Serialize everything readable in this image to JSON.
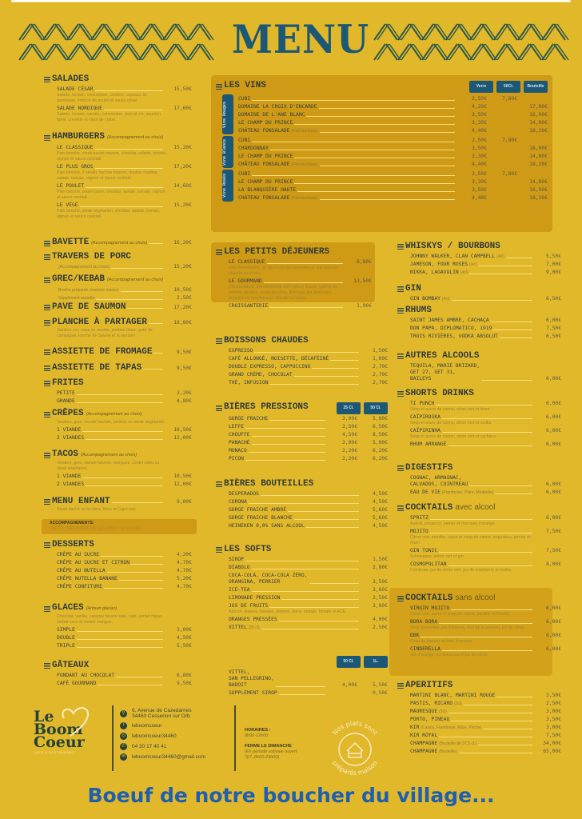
{
  "title": "MENU",
  "colors": {
    "background": "#e2b82b",
    "box": "#cf9a15",
    "title_blue": "#1d5776",
    "footer_text_blue": "#1e5fb0"
  },
  "left": [
    {
      "title": "SALADES",
      "items": [
        {
          "name": "SALADE CÉSAR",
          "prices": [
            "15,50€"
          ],
          "desc": "Salade, tomate, concombre, croûton, copeaux de parmesan, émincé de poulet et sauce césar."
        },
        {
          "name": "SALADE NORDIQUE",
          "prices": [
            "17,60€"
          ],
          "desc": "Salade, tomate, carotte, concombre, avocat, riz, saumon fumé, crevette et chair de crabe."
        }
      ]
    },
    {
      "title": "HAMBURGERS",
      "note": "(Accompagnement au choix)",
      "items": [
        {
          "name": "LE CLASSIQUE",
          "prices": [
            "15,20€"
          ],
          "desc": "Pain brioché, steak haché maison, cheddar, salade, tomate, oignon et sauce cocktail."
        },
        {
          "name": "LE PLUS GROS",
          "prices": [
            "17,20€"
          ],
          "desc": "Pain brioché, 2 steaks hachés maison, double cheddar, salade, tomate, oignon et sauce cocktail."
        },
        {
          "name": "LE POULET",
          "prices": [
            "14,60€"
          ],
          "desc": "Pain brioché, poulet pané, cheddar, salade, tomate, oignon et sauce cocktail."
        },
        {
          "name": "LE VÉGÉ",
          "prices": [
            "15,20€"
          ],
          "desc": "Pain brioché, steak végétarien, cheddar, salade, tomate, oignon et sauce cocktail."
        }
      ]
    },
    {
      "title": "BAVETTE",
      "note": "(Accompagnement au choix)",
      "price": "16,20€",
      "items": []
    },
    {
      "title": "TRAVERS DE PORC",
      "items": [
        {
          "name": "",
          "note": "(Accompagnement au choix)",
          "prices": [
            "15,20€"
          ]
        }
      ]
    },
    {
      "title": "GREC/KEBAB",
      "note": "(Accompagnement au choix)",
      "items": [
        {
          "name": "",
          "note": "Broche préparée, marinée maison",
          "prices": [
            "10,50€"
          ]
        },
        {
          "name": "",
          "note": "Supplément assiette",
          "prices": [
            "2,50€"
          ]
        }
      ]
    },
    {
      "title": "PAVE DE SAUMON",
      "price": "17,20€",
      "items": []
    },
    {
      "title": "PLANCHE À PARTAGER",
      "price": "18,80€",
      "items": [],
      "desc": "Jambon cru, copa ou rosette, jambon blanc, paté de campagne, tomme de Savoie et st nectaire."
    },
    {
      "title": "ASSIETTE DE FROMAGE",
      "price": "9,50€",
      "items": []
    },
    {
      "title": "ASSIETTE DE TAPAS",
      "price": "9,50€",
      "items": []
    },
    {
      "title": "FRITES",
      "items": [
        {
          "name": "PETITE",
          "prices": [
            "3,20€"
          ]
        },
        {
          "name": "GRANDE",
          "prices": [
            "4,80€"
          ]
        }
      ]
    },
    {
      "title": "CRÊPES",
      "note": "(Accompagnement au choix)",
      "desc": "Tenders, grec, viande hachée, jambon ou steak végétarien",
      "items": [
        {
          "name": "1 VIANDE",
          "prices": [
            "10,50€"
          ]
        },
        {
          "name": "2 VIANDES",
          "prices": [
            "12,00€"
          ]
        }
      ]
    },
    {
      "title": "TACOS",
      "note": "(Accompagnement au choix)",
      "desc": "Tenders, grec, viande hachée, merguez, cordon bleu ou steak végétarien.",
      "items": [
        {
          "name": "1 VIANDE",
          "prices": [
            "10,50€"
          ]
        },
        {
          "name": "2 VIANDES",
          "prices": [
            "12,00€"
          ]
        }
      ]
    },
    {
      "title": "MENU ENFANT",
      "price": "9,00€",
      "items": [],
      "desc": "Steak haché ou tenders, frites et Capri-sun"
    },
    {
      "title": "DESSERTS",
      "items": [
        {
          "name": "CRÊPE AU SUCRE",
          "prices": [
            "4,20€"
          ]
        },
        {
          "name": "CRÊPE AU SUCRE ET CITRON",
          "prices": [
            "4,70€"
          ]
        },
        {
          "name": "CRÊPE AU NUTELLA",
          "prices": [
            "4,70€"
          ]
        },
        {
          "name": "CRÊPE NUTELLA BANANE",
          "prices": [
            "5,20€"
          ]
        },
        {
          "name": "CRÊPE CONFITURE",
          "prices": [
            "4,70€"
          ]
        }
      ]
    },
    {
      "title": "GLACES",
      "note": "(Artisan glacier)",
      "desc": "Chocolat, vanille, caramel beurre salé, café, sorbet fraise, sorbet coco et sorbet mangue.",
      "items": [
        {
          "name": "SIMPLE",
          "prices": [
            "3,00€"
          ]
        },
        {
          "name": "DOUBLE",
          "prices": [
            "4,50€"
          ]
        },
        {
          "name": "TRIPLE",
          "prices": [
            "5,50€"
          ]
        }
      ]
    },
    {
      "title": "GÂTEAUX",
      "items": [
        {
          "name": "FONDANT AU CHOCOLAT",
          "prices": [
            "6,80€"
          ]
        },
        {
          "name": "CAFÉ GOURMAND",
          "prices": [
            "9,50€"
          ]
        }
      ]
    }
  ],
  "accompagnements": {
    "label": "ACCOMPAGNEMENTS:",
    "text": "FRITES, JARDINIÈRE DE LÉGUMES OU SALADE"
  },
  "wines": {
    "title": "LES VINS",
    "price_headers": [
      "Verre",
      "50Cl.",
      "Bouteille"
    ],
    "groups": [
      {
        "label": "Vins Rouges",
        "items": [
          {
            "name": "CUBI",
            "prices": [
              "2,50€",
              "7,80€",
              ""
            ]
          },
          {
            "name": "DOMAINE LA CROIX D'ENCARDE",
            "prices": [
              "4,20€",
              "",
              "17,80€"
            ]
          },
          {
            "name": "DOMAINE DE L'ANE BLANC",
            "prices": [
              "3,50€",
              "",
              "16,00€"
            ]
          },
          {
            "name": "LE CHAMP DU PRINCE",
            "prices": [
              "3,30€",
              "",
              "14,80€"
            ]
          },
          {
            "name": "CHÂTEAU FONSALADE",
            "note": "(Petit bonheur)",
            "prices": [
              "4,40€",
              "",
              "18,20€"
            ]
          }
        ]
      },
      {
        "label": "Vins Blancs",
        "items": [
          {
            "name": "CUBI",
            "prices": [
              "2,50€",
              "7,80€",
              ""
            ]
          },
          {
            "name": "CHARDONNAY",
            "prices": [
              "3,50€",
              "",
              "16,00€"
            ]
          },
          {
            "name": "LE CHAMP DU PRINCE",
            "prices": [
              "3,30€",
              "",
              "14,80€"
            ]
          },
          {
            "name": "CHÂTEAU FONSALADE",
            "note": "(Petit bonheur)",
            "prices": [
              "4,40€",
              "",
              "18,20€"
            ]
          }
        ]
      },
      {
        "label": "Vins Rosés",
        "items": [
          {
            "name": "CUBI",
            "prices": [
              "2,50€",
              "7,80€",
              ""
            ]
          },
          {
            "name": "LE CHAMP DU PRINCE",
            "prices": [
              "3,30€",
              "",
              "14,80€"
            ]
          },
          {
            "name": "LA BLANQUIÈRE HAUTE",
            "prices": [
              "3,50€",
              "",
              "16,00€"
            ]
          },
          {
            "name": "CHÂTEAU FONSALADE",
            "note": "(Petit bonheur)",
            "prices": [
              "4,40€",
              "",
              "18,20€"
            ]
          }
        ]
      }
    ]
  },
  "middle": [
    {
      "title": "LES PETITS DÉJEUNERS",
      "items": [
        {
          "name": "LE CLASSIQUE",
          "prices": [
            "6,80€"
          ],
          "desc": "Une viennoiserie, un jus d'oranges pressées et une boisson chaude au choix."
        },
        {
          "name": "LE GOURMAND",
          "prices": [
            "13,50€"
          ],
          "desc": "(SEULEMENT EN PÉRIODE ESTIVALE) Bacon, galette de pomme de terre, oeufs brouillés, fromage, jus d'oranges pressées et une boisson chaude au choix."
        },
        {
          "name": "CROISSANTERIE",
          "prices": [
            "1,90€"
          ]
        }
      ]
    },
    {
      "title": "BOISSONS CHAUDES",
      "items": [
        {
          "name": "EXPRESSO",
          "prices": [
            "1,50€"
          ]
        },
        {
          "name": "CAFÉ ALLONGÉ, NOISETTE, DÉCAFÉINÉ",
          "prices": [
            "1,60€"
          ]
        },
        {
          "name": "DOUBLE EXPRESSO, CAPPUCCINO",
          "prices": [
            "2,70€"
          ]
        },
        {
          "name": "GRAND CRÈME, CHOCOLAT",
          "prices": [
            "2,70€"
          ]
        },
        {
          "name": "THÉ, INFUSION",
          "prices": [
            "2,70€"
          ]
        }
      ]
    },
    {
      "title": "BIÈRES PRESSIONS",
      "badges": [
        "25 Cl.",
        "50 Cl."
      ],
      "items": [
        {
          "name": "GORGE FRAICHE",
          "prices": [
            "3,00€",
            "5,80€"
          ]
        },
        {
          "name": "LEFFE",
          "prices": [
            "3,50€",
            "6,50€"
          ]
        },
        {
          "name": "CHOUFFE",
          "prices": [
            "4,50€",
            "8,50€"
          ]
        },
        {
          "name": "PANACHÉ",
          "prices": [
            "3,00€",
            "5,80€"
          ]
        },
        {
          "name": "MONACO",
          "prices": [
            "3,20€",
            "6,20€"
          ]
        },
        {
          "name": "PICON",
          "prices": [
            "3,20€",
            "6,20€"
          ]
        }
      ]
    },
    {
      "title": "BIÈRES BOUTEILLES",
      "items": [
        {
          "name": "DESPERADOS",
          "prices": [
            "4,50€"
          ]
        },
        {
          "name": "CORONA",
          "prices": [
            "4,50€"
          ]
        },
        {
          "name": "GORGE FRAICHE AMBRÉ",
          "prices": [
            "5,60€"
          ]
        },
        {
          "name": "GORGE FRAICHE BLANCHE",
          "prices": [
            "5,60€"
          ]
        },
        {
          "name": "HEINEKEN 0,0% SANS ALCOOL",
          "prices": [
            "4,50€"
          ]
        }
      ]
    },
    {
      "title": "LES SOFTS",
      "items": [
        {
          "name": "SIROP",
          "prices": [
            "1,50€"
          ]
        },
        {
          "name": "DIABOLO",
          "prices": [
            "2,80€"
          ]
        },
        {
          "name": "COCA-COLA, COCA-COLA ZÉRO,\nORANGINA, PERRIER",
          "prices": [
            "3,50€"
          ]
        },
        {
          "name": "ICE-TEA",
          "prices": [
            "3,00€"
          ]
        },
        {
          "name": "LIMONADE PRESSION",
          "prices": [
            "2,50€"
          ]
        },
        {
          "name": "JUS DE FRUITS",
          "prices": [
            "3,00€"
          ],
          "desc": "Abricot, ananas, banane, pomme, poire, orange, tomate et ACE."
        },
        {
          "name": "ORANGES PRESSÉES",
          "prices": [
            "4,00€"
          ]
        },
        {
          "name": "VITTEL",
          "note": "(25 cl)",
          "prices": [
            "2,50€"
          ]
        }
      ]
    },
    {
      "badges": [
        "50 Cl.",
        "1L."
      ],
      "items": [
        {
          "name": "VITTEL,\nSAN PELLEGRINO,\nBADOIT",
          "prices": [
            "4,00€",
            "5,50€"
          ]
        },
        {
          "name": "SUPPLÉMENT SIROP",
          "prices": [
            "",
            "0,50€"
          ]
        }
      ]
    }
  ],
  "right": [
    {
      "title": "WHISKYS / BOURBONS",
      "items": [
        {
          "name": "JOHNNY WALKER, CLAN CAMPBELL",
          "note": "(4cl)",
          "prices": [
            "5,50€"
          ]
        },
        {
          "name": "JAMESON, FOUR ROSES",
          "note": "(4cl)",
          "prices": [
            "7,00€"
          ]
        },
        {
          "name": "NIKKA, LAGAVULIN",
          "note": "(4cl)",
          "prices": [
            "9,00€"
          ]
        }
      ]
    },
    {
      "title": "GIN",
      "items": [
        {
          "name": "GIN BOMBAY",
          "note": "(4cl)",
          "prices": [
            "6,50€"
          ]
        }
      ]
    },
    {
      "title": "RHUMS",
      "items": [
        {
          "name": "SAINT JAMES AMBRÉ, CACHAÇA",
          "prices": [
            "6,00€"
          ]
        },
        {
          "name": "DON PAPA, DIPLOMATICO, 1919",
          "prices": [
            "7,50€"
          ]
        },
        {
          "name": "TROIS RIVIÈRES, VODKA ABSOLUT",
          "prices": [
            "6,50€"
          ]
        }
      ]
    },
    {
      "title": "AUTRES ALCOOLS",
      "items": [
        {
          "name": "TEQUILA, MARIE BRIZARD,\nGET 27, GET 31,\nBAILEYS",
          "prices": [
            "6,00€"
          ]
        }
      ]
    },
    {
      "title": "SHORTS DRINKS",
      "items": [
        {
          "name": "TI PUNCH",
          "prices": [
            "6,00€"
          ],
          "desc": "Sirop et sucre de canne, citron vert et rhum"
        },
        {
          "name": "CAÏPIROSKA",
          "prices": [
            "6,00€"
          ],
          "desc": "Sirop et sucre de canne, citron vert et vodka"
        },
        {
          "name": "CAÏPIRINHA",
          "prices": [
            "6,00€"
          ],
          "desc": "Sirop et sucre de canne, citron vert et cachaca"
        },
        {
          "name": "RHUM ARRANGÉ",
          "prices": [
            "6,00€"
          ]
        }
      ]
    },
    {
      "title": "DIGESTIFS",
      "items": [
        {
          "name": "COGNAC, ARMAGNAC,\nCALVADOS, COINTREAU",
          "prices": [
            "6,00€"
          ]
        },
        {
          "name": "EAU DE VIE",
          "note": "(Framboise, Poire, Mirabelle)",
          "prices": [
            "6,00€"
          ]
        }
      ]
    },
    {
      "title": "COCKTAILS",
      "subtitle": "avec alcool",
      "items": [
        {
          "name": "SPRITZ",
          "prices": [
            "6,00€"
          ],
          "desc": "Apérol, prosecco, perrier et morceau d'orange"
        },
        {
          "name": "MOJITO",
          "prices": [
            "7,50€"
          ],
          "desc": "Citron vert, menthe, sucre et sirop de canne, angostura, perrier et rhum."
        },
        {
          "name": "GIN TONIC",
          "prices": [
            "7,50€"
          ],
          "desc": "Schweppes, citron vert et gin."
        },
        {
          "name": "COSMOPOLITAN",
          "prices": [
            "8,00€"
          ],
          "desc": "Cointreau, jus de citron vert, jus de cramberry et vodka."
        }
      ]
    },
    {
      "title": "COCKTAILS",
      "subtitle": "sans alcool",
      "items": [
        {
          "name": "VIRGIN MOJITO",
          "prices": [
            "6,00€"
          ],
          "desc": "Citron vert, sucre et sirop de canne, menthe et Perrier."
        },
        {
          "name": "BORA-BORA",
          "prices": [
            "6,00€"
          ],
          "desc": "Sirop grenadine, jus d'ananas, fruit de la passion, jus de citron"
        },
        {
          "name": "DBK",
          "prices": [
            "6,00€"
          ],
          "desc": "Sirop de banane et kiwi, limonade"
        },
        {
          "name": "CINDERELLA",
          "prices": [
            "6,00€"
          ],
          "desc": "Jus d'orange, jus d'ananas et jus de citron"
        }
      ]
    },
    {
      "title": "APERITIFS",
      "items": [
        {
          "name": "MARTINI BLANC, MARTINI ROUGE",
          "prices": [
            "3,50€"
          ]
        },
        {
          "name": "PASTIS, RICARD",
          "note": "(2cl)",
          "prices": [
            "2,50€"
          ]
        },
        {
          "name": "MAURESQUE",
          "note": "(2cl)",
          "prices": [
            "3,00€"
          ]
        },
        {
          "name": "PORTO, PINEAU",
          "prices": [
            "3,50€"
          ]
        },
        {
          "name": "KIR",
          "note": "(Cassis, Framboise, Mûre, Pêche)",
          "prices": [
            "3,00€"
          ]
        },
        {
          "name": "KIR ROYAL",
          "prices": [
            "7,50€"
          ]
        },
        {
          "name": "CHAMPAGNE",
          "note": "(Bouteille de 37,5 cl.)",
          "prices": [
            "34,00€"
          ]
        },
        {
          "name": "CHAMPAGNE",
          "note": "(Bouteille)",
          "prices": [
            "65,00€"
          ]
        }
      ]
    }
  ],
  "footer": {
    "logo": {
      "line1": "Le",
      "line2": "Boom",
      "line3": "Coeur",
      "tagline": "CAFÉ & RESTAURANT"
    },
    "contacts": [
      {
        "icon": "location-pin-icon",
        "text": "6, Avenue de Cazedarnes\n34460 Cessenon sur Orb"
      },
      {
        "icon": "facebook-icon",
        "text": "leboomcoeur"
      },
      {
        "icon": "instagram-icon",
        "text": "leboomcoeur34460"
      },
      {
        "icon": "phone-icon",
        "text": "04 30 17 40 41"
      },
      {
        "icon": "email-icon",
        "text": "leboomcoeur34460@gmail.com"
      }
    ],
    "hours_label": "HORAIRES :",
    "hours": "8h00-22h00",
    "closed_label": "FERME LE DIMANCHE",
    "closed_note": "(En période estivale ouvert 7j/7, 8h00-23h00)",
    "stamp_top": "Nos plats sont",
    "stamp_bottom": "préparés maison"
  },
  "tagline": "Boeuf de notre boucher du village..."
}
